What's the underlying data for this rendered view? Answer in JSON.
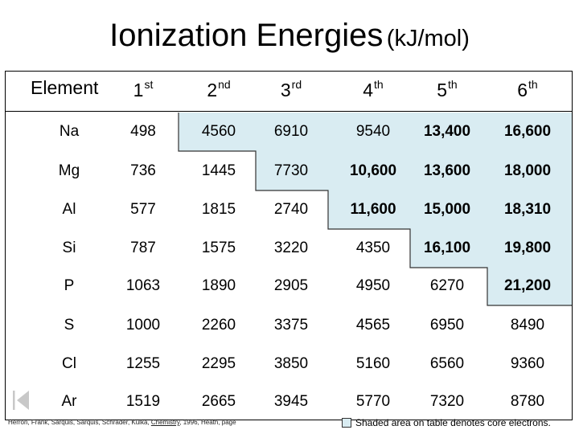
{
  "title": {
    "main": "Ionization Energies",
    "unit": "(kJ/mol)"
  },
  "headers": {
    "element": "Element",
    "ordinals": [
      {
        "num": "1",
        "suffix": "st"
      },
      {
        "num": "2",
        "suffix": "nd"
      },
      {
        "num": "3",
        "suffix": "rd"
      },
      {
        "num": "4",
        "suffix": "th"
      },
      {
        "num": "5",
        "suffix": "th"
      },
      {
        "num": "6",
        "suffix": "th"
      }
    ]
  },
  "rows": [
    {
      "element": "Na",
      "values": [
        "498",
        "4560",
        "6910",
        "9540",
        "13,400",
        "16,600"
      ]
    },
    {
      "element": "Mg",
      "values": [
        "736",
        "1445",
        "7730",
        "10,600",
        "13,600",
        "18,000"
      ]
    },
    {
      "element": "Al",
      "values": [
        "577",
        "1815",
        "2740",
        "11,600",
        "15,000",
        "18,310"
      ]
    },
    {
      "element": "Si",
      "values": [
        "787",
        "1575",
        "3220",
        "4350",
        "16,100",
        "19,800"
      ]
    },
    {
      "element": "P",
      "values": [
        "1063",
        "1890",
        "2905",
        "4950",
        "6270",
        "21,200"
      ]
    },
    {
      "element": "S",
      "values": [
        "1000",
        "2260",
        "3375",
        "4565",
        "6950",
        "8490"
      ]
    },
    {
      "element": "Cl",
      "values": [
        "1255",
        "2295",
        "3850",
        "5160",
        "6560",
        "9360"
      ]
    },
    {
      "element": "Ar",
      "values": [
        "1519",
        "2665",
        "3945",
        "5770",
        "7320",
        "8780"
      ]
    }
  ],
  "core_electron_start_column": [
    2,
    3,
    4,
    5,
    6,
    6
  ],
  "shade_color": "#d9ecf2",
  "credit": {
    "prefix": "Herron, Frank, Sarquis, Sarquis, Schrader, Kulka, ",
    "book": "Chemistry",
    "suffix": ", 1996, Heath, page"
  },
  "legend": "Shaded area on table denotes core electrons."
}
